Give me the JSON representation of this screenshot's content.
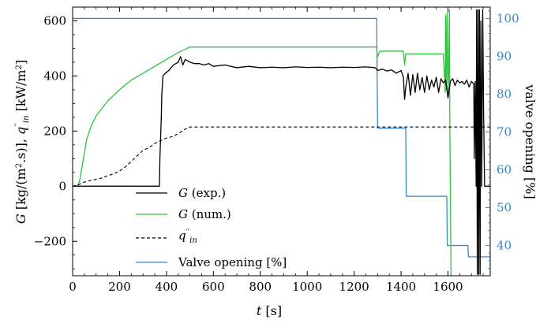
{
  "chart_data": {
    "type": "line",
    "xlabel": "t [s]",
    "ylabel": "G [kg/(m2.s)], q''in [kW/m2]",
    "ylabel_right": "valve opening [%]",
    "xlim": [
      0,
      1780
    ],
    "ylim": [
      -325,
      650
    ],
    "ylim_right": [
      32,
      103
    ],
    "x_ticks": [
      0,
      200,
      400,
      600,
      800,
      1000,
      1200,
      1400,
      1600
    ],
    "x_tick_labels": [
      "0",
      "200",
      "400",
      "600",
      "800",
      "1000",
      "1200",
      "1400",
      "1600"
    ],
    "y_ticks": [
      -200,
      0,
      200,
      400,
      600
    ],
    "y_tick_labels": [
      "−200",
      "0",
      "200",
      "400",
      "600"
    ],
    "y_right_ticks": [
      40,
      50,
      60,
      70,
      80,
      90,
      100
    ],
    "y_right_tick_labels": [
      "40",
      "50",
      "60",
      "70",
      "80",
      "90",
      "100"
    ],
    "grid": false,
    "legend_placement": "lower-left",
    "colors": {
      "exp": "#000000",
      "num": "#2ec23e",
      "qin": "#000000",
      "valve": "#3a86c8",
      "right_axis": "#3a86c8"
    },
    "series": [
      {
        "name": "G (exp.)",
        "axis": "left",
        "style": "solid",
        "x": [
          0,
          370,
          372,
          378,
          380,
          385,
          395,
          410,
          430,
          450,
          460,
          470,
          480,
          500,
          520,
          540,
          560,
          580,
          600,
          650,
          700,
          750,
          800,
          850,
          900,
          950,
          1000,
          1050,
          1100,
          1150,
          1200,
          1250,
          1290,
          1300,
          1320,
          1340,
          1360,
          1380,
          1400,
          1410,
          1415,
          1420,
          1430,
          1440,
          1450,
          1460,
          1470,
          1480,
          1490,
          1500,
          1510,
          1520,
          1530,
          1540,
          1550,
          1560,
          1570,
          1580,
          1590,
          1600,
          1610,
          1620,
          1630,
          1640,
          1650,
          1660,
          1670,
          1680,
          1690,
          1700,
          1710,
          1712,
          1716,
          1720,
          1722,
          1725,
          1728,
          1731,
          1734,
          1737,
          1740,
          1744,
          1748,
          1752,
          1756,
          1760,
          1765,
          1770,
          1780
        ],
        "values": [
          0,
          0,
          100,
          250,
          330,
          400,
          410,
          420,
          440,
          450,
          470,
          440,
          460,
          450,
          445,
          445,
          440,
          445,
          435,
          440,
          430,
          435,
          430,
          432,
          430,
          433,
          431,
          432,
          430,
          432,
          431,
          433,
          430,
          420,
          425,
          418,
          422,
          410,
          420,
          395,
          315,
          360,
          410,
          330,
          405,
          340,
          410,
          350,
          395,
          340,
          400,
          350,
          385,
          360,
          395,
          340,
          390,
          375,
          385,
          320,
          380,
          390,
          365,
          385,
          375,
          380,
          370,
          385,
          360,
          380,
          372,
          100,
          380,
          0,
          640,
          -320,
          640,
          -320,
          640,
          -320,
          600,
          0,
          640,
          250,
          0,
          0,
          0,
          0,
          0
        ]
      },
      {
        "name": "G (num.)",
        "axis": "left",
        "style": "solid",
        "x": [
          0,
          20,
          30,
          40,
          60,
          80,
          100,
          150,
          200,
          250,
          300,
          350,
          400,
          450,
          500,
          550,
          600,
          700,
          800,
          900,
          1000,
          1100,
          1200,
          1295,
          1300,
          1310,
          1400,
          1410,
          1415,
          1420,
          1500,
          1580,
          1585,
          1588,
          1590,
          1593,
          1596,
          1600,
          1603,
          1606,
          1608,
          1610,
          1612,
          1613
        ],
        "values": [
          0,
          0,
          20,
          70,
          170,
          220,
          255,
          310,
          350,
          385,
          410,
          435,
          460,
          485,
          505,
          505,
          505,
          505,
          505,
          505,
          505,
          505,
          505,
          505,
          470,
          490,
          490,
          490,
          440,
          480,
          480,
          480,
          400,
          340,
          620,
          350,
          630,
          330,
          420,
          640,
          200,
          0,
          -200,
          -325
        ]
      },
      {
        "name": "q''in",
        "axis": "left",
        "style": "dashed",
        "x": [
          0,
          25,
          50,
          75,
          100,
          125,
          150,
          175,
          200,
          225,
          250,
          275,
          300,
          325,
          350,
          375,
          400,
          425,
          450,
          475,
          500,
          1780
        ],
        "values": [
          0,
          5,
          15,
          20,
          25,
          30,
          38,
          45,
          55,
          70,
          90,
          110,
          130,
          140,
          155,
          165,
          175,
          180,
          190,
          205,
          215,
          215
        ]
      },
      {
        "name": "Valve opening [%]",
        "axis": "right",
        "style": "solid",
        "x": [
          0,
          1295,
          1296,
          1300,
          1420,
          1422,
          1595,
          1597,
          1685,
          1687,
          1780
        ],
        "values": [
          100,
          100,
          100,
          71,
          71,
          53,
          53,
          40,
          40,
          37,
          37
        ]
      }
    ],
    "legend": {
      "exp": "G (exp.)",
      "num": "G (num.)",
      "qin": "q''in",
      "valve": "Valve opening [%]"
    }
  }
}
